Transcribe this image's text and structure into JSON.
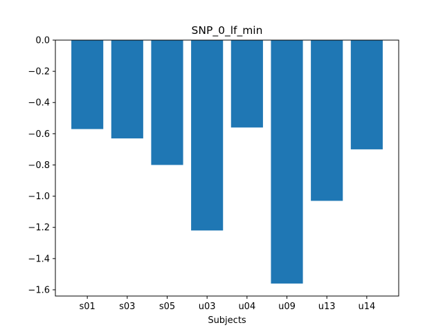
{
  "chart_data": {
    "type": "bar",
    "title": "SNP_0_lf_min",
    "xlabel": "Subjects",
    "ylabel": "",
    "categories": [
      "s01",
      "s03",
      "s05",
      "u03",
      "u04",
      "u09",
      "u13",
      "u14"
    ],
    "values": [
      -0.57,
      -0.63,
      -0.8,
      -1.22,
      -0.56,
      -1.56,
      -1.03,
      -0.7
    ],
    "ylim": [
      -1.64,
      0.0
    ],
    "yticks": [
      0.0,
      -0.2,
      -0.4,
      -0.6,
      -0.8,
      -1.0,
      -1.2,
      -1.4,
      -1.6
    ],
    "ytick_labels": [
      "0.0",
      "−0.2",
      "−0.4",
      "−0.6",
      "−0.8",
      "−1.0",
      "−1.2",
      "−1.4",
      "−1.6"
    ],
    "bar_color": "#1f77b4",
    "grid": false,
    "legend": "none"
  }
}
